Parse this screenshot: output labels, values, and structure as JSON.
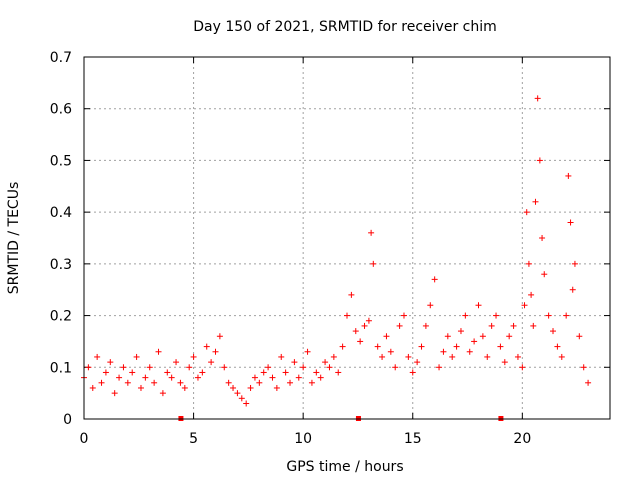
{
  "chart_data": {
    "type": "scatter",
    "title": "Day 150 of 2021, SRMTID for receiver chim",
    "xlabel": "GPS time / hours",
    "ylabel": "SRMTID / TECUs",
    "xlim": [
      0,
      24
    ],
    "ylim": [
      0,
      0.7
    ],
    "xticks": [
      "0",
      "5",
      "10",
      "15",
      "20"
    ],
    "yticks": [
      "0",
      "0.1",
      "0.2",
      "0.3",
      "0.4",
      "0.5",
      "0.6",
      "0.7"
    ],
    "grid": true,
    "marker": "+",
    "color": "#ff0000",
    "gap_markers_x": [
      4.4,
      12.5,
      19.0
    ],
    "series": [
      {
        "name": "SRMTID",
        "x": [
          0.0,
          0.2,
          0.4,
          0.6,
          0.8,
          1.0,
          1.2,
          1.4,
          1.6,
          1.8,
          2.0,
          2.2,
          2.4,
          2.6,
          2.8,
          3.0,
          3.2,
          3.4,
          3.6,
          3.8,
          4.0,
          4.2,
          4.4,
          4.6,
          4.8,
          5.0,
          5.2,
          5.4,
          5.6,
          5.8,
          6.0,
          6.2,
          6.4,
          6.6,
          6.8,
          7.0,
          7.2,
          7.4,
          7.6,
          7.8,
          8.0,
          8.2,
          8.4,
          8.6,
          8.8,
          9.0,
          9.2,
          9.4,
          9.6,
          9.8,
          10.0,
          10.2,
          10.4,
          10.6,
          10.8,
          11.0,
          11.2,
          11.4,
          11.6,
          11.8,
          12.0,
          12.2,
          12.4,
          12.6,
          12.8,
          13.0,
          13.1,
          13.2,
          13.4,
          13.6,
          13.8,
          14.0,
          14.2,
          14.4,
          14.6,
          14.8,
          15.0,
          15.2,
          15.4,
          15.6,
          15.8,
          16.0,
          16.2,
          16.4,
          16.6,
          16.8,
          17.0,
          17.2,
          17.4,
          17.6,
          17.8,
          18.0,
          18.2,
          18.4,
          18.6,
          18.8,
          19.0,
          19.2,
          19.4,
          19.6,
          19.8,
          20.0,
          20.1,
          20.2,
          20.3,
          20.4,
          20.5,
          20.6,
          20.7,
          20.8,
          20.9,
          21.0,
          21.2,
          21.4,
          21.6,
          21.8,
          22.0,
          22.1,
          22.2,
          22.3,
          22.4,
          22.6,
          22.8,
          23.0
        ],
        "y": [
          0.08,
          0.1,
          0.06,
          0.12,
          0.07,
          0.09,
          0.11,
          0.05,
          0.08,
          0.1,
          0.07,
          0.09,
          0.12,
          0.06,
          0.08,
          0.1,
          0.07,
          0.13,
          0.05,
          0.09,
          0.08,
          0.11,
          0.07,
          0.06,
          0.1,
          0.12,
          0.08,
          0.09,
          0.14,
          0.11,
          0.13,
          0.16,
          0.1,
          0.07,
          0.06,
          0.05,
          0.04,
          0.03,
          0.06,
          0.08,
          0.07,
          0.09,
          0.1,
          0.08,
          0.06,
          0.12,
          0.09,
          0.07,
          0.11,
          0.08,
          0.1,
          0.13,
          0.07,
          0.09,
          0.08,
          0.11,
          0.1,
          0.12,
          0.09,
          0.14,
          0.2,
          0.24,
          0.17,
          0.15,
          0.18,
          0.19,
          0.36,
          0.3,
          0.14,
          0.12,
          0.16,
          0.13,
          0.1,
          0.18,
          0.2,
          0.12,
          0.09,
          0.11,
          0.14,
          0.18,
          0.22,
          0.27,
          0.1,
          0.13,
          0.16,
          0.12,
          0.14,
          0.17,
          0.2,
          0.13,
          0.15,
          0.22,
          0.16,
          0.12,
          0.18,
          0.2,
          0.14,
          0.11,
          0.16,
          0.18,
          0.12,
          0.1,
          0.22,
          0.4,
          0.3,
          0.24,
          0.18,
          0.42,
          0.62,
          0.5,
          0.35,
          0.28,
          0.2,
          0.17,
          0.14,
          0.12,
          0.2,
          0.47,
          0.38,
          0.25,
          0.3,
          0.16,
          0.1,
          0.07
        ]
      }
    ]
  }
}
